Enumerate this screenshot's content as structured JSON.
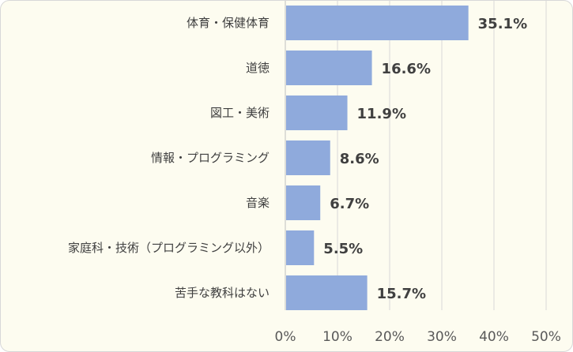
{
  "chart_data": {
    "type": "bar",
    "orientation": "horizontal",
    "categories": [
      "体育・保健体育",
      "道徳",
      "図工・美術",
      "情報・プログラミング",
      "音楽",
      "家庭科・技術（プログラミング以外）",
      "苦手な教科はない"
    ],
    "values": [
      35.1,
      16.6,
      11.9,
      8.6,
      6.7,
      5.5,
      15.7
    ],
    "value_labels": [
      "35.1%",
      "16.6%",
      "11.9%",
      "8.6%",
      "6.7%",
      "5.5%",
      "15.7%"
    ],
    "xlim": [
      0,
      50
    ],
    "ticks": [
      0,
      10,
      20,
      30,
      40,
      50
    ],
    "tick_labels": [
      "0%",
      "10%",
      "20%",
      "30%",
      "40%",
      "50%"
    ],
    "grid": true,
    "legend": "none",
    "bar_color": "#8faadc",
    "background_color": "#fdfcf0"
  }
}
